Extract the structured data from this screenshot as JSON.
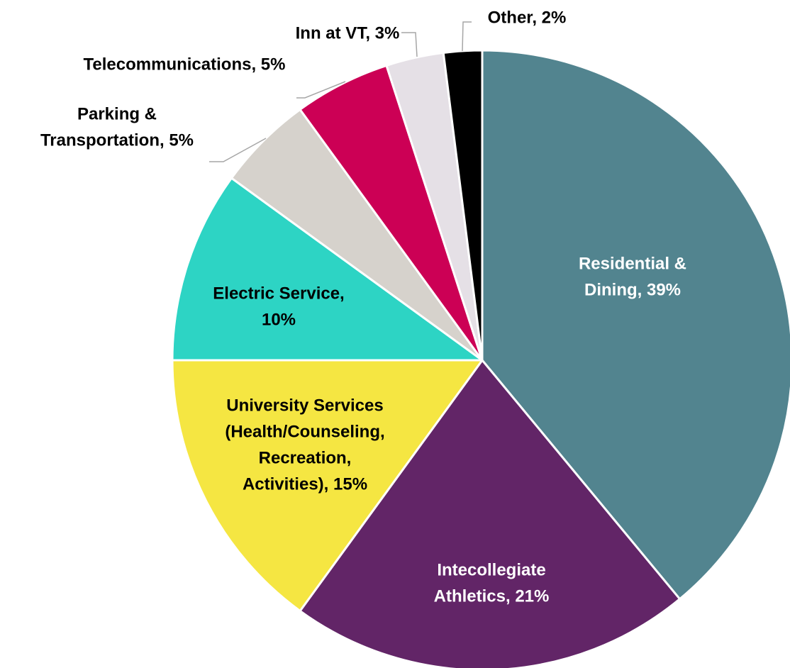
{
  "chart_data": {
    "type": "pie",
    "values": [
      39,
      21,
      15,
      10,
      5,
      5,
      3,
      2
    ],
    "value_labels": [
      [
        "Residential &",
        "Dining, 39%"
      ],
      [
        "Intecollegiate",
        "Athletics, 21%"
      ],
      [
        "University Services",
        "(Health/Counseling,",
        "Recreation,",
        "Activities), 15%"
      ],
      [
        "Electric Service,",
        "10%"
      ],
      [
        "Parking &",
        "Transportation, 5%"
      ],
      [
        "Telecommunications, 5%"
      ],
      [
        "Inn at VT, 3%"
      ],
      [
        "Other, 2%"
      ]
    ],
    "colors": [
      "#52848f",
      "#622567",
      "#f5e642",
      "#2dd4c4",
      "#d6d2cc",
      "#cc0055",
      "#e5e0e6",
      "#000000"
    ],
    "label_colors": [
      "#ffffff",
      "#ffffff",
      "#000000",
      "#000000",
      "#000000",
      "#000000",
      "#000000",
      "#000000"
    ]
  }
}
